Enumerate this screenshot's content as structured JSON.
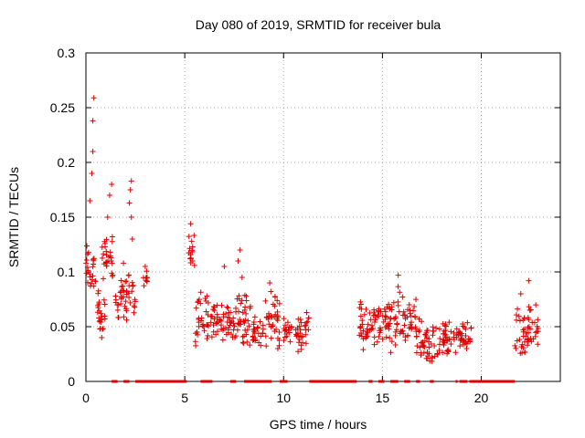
{
  "chart_data": {
    "type": "scatter",
    "title": "Day 080 of 2019, SRMTID for receiver bula",
    "xlabel": "GPS time / hours",
    "ylabel": "SRMTID / TECUs",
    "xlim": [
      0,
      24
    ],
    "ylim": [
      0,
      0.3
    ],
    "xticks": [
      0,
      5,
      10,
      15,
      20
    ],
    "yticks": [
      0,
      0.05,
      0.1,
      0.15,
      0.2,
      0.25,
      0.3
    ],
    "xtick_labels": [
      "0",
      "5",
      "10",
      "15",
      "20"
    ],
    "ytick_labels": [
      "0",
      "0.05",
      "0.1",
      "0.15",
      "0.2",
      "0.25",
      "0.3"
    ],
    "grid": true,
    "marker": "+",
    "color": "#e00000",
    "series": [
      {
        "name": "SRMTID",
        "clusters": [
          {
            "x": [
              0.0,
              0.5
            ],
            "y": [
              0.07,
              0.13
            ],
            "peaks": [
              [
                0.2,
                0.165
              ],
              [
                0.3,
                0.19
              ],
              [
                0.35,
                0.21
              ],
              [
                0.35,
                0.238
              ],
              [
                0.4,
                0.259
              ]
            ]
          },
          {
            "x": [
              0.5,
              1.0
            ],
            "y": [
              0.035,
              0.085
            ],
            "peaks": [
              [
                0.8,
                0.04
              ]
            ]
          },
          {
            "x": [
              0.8,
              1.4
            ],
            "y": [
              0.09,
              0.14
            ],
            "peaks": [
              [
                1.2,
                0.17
              ],
              [
                1.3,
                0.18
              ],
              [
                1.1,
                0.15
              ]
            ]
          },
          {
            "x": [
              1.5,
              2.0
            ],
            "y": [
              0.05,
              0.095
            ],
            "peaks": [
              [
                1.9,
                0.108
              ]
            ]
          },
          {
            "x": [
              2.0,
              2.5
            ],
            "y": [
              0.05,
              0.1
            ],
            "peaks": [
              [
                2.3,
                0.183
              ],
              [
                2.25,
                0.175
              ],
              [
                2.2,
                0.163
              ],
              [
                2.3,
                0.15
              ],
              [
                2.35,
                0.13
              ]
            ]
          },
          {
            "x": [
              2.9,
              3.1
            ],
            "y": [
              0.08,
              0.105
            ],
            "peaks": [
              [
                3.0,
                0.105
              ]
            ]
          },
          {
            "x": [
              5.2,
              5.5
            ],
            "y": [
              0.09,
              0.14
            ],
            "peaks": [
              [
                5.3,
                0.144
              ],
              [
                5.35,
                0.128
              ],
              [
                5.4,
                0.11
              ]
            ]
          },
          {
            "x": [
              5.5,
              6.2
            ],
            "y": [
              0.03,
              0.085
            ],
            "peaks": []
          },
          {
            "x": [
              6.3,
              7.5
            ],
            "y": [
              0.035,
              0.075
            ],
            "peaks": [
              [
                7.0,
                0.105
              ]
            ]
          },
          {
            "x": [
              7.5,
              8.4
            ],
            "y": [
              0.03,
              0.085
            ],
            "peaks": [
              [
                7.8,
                0.12
              ],
              [
                7.7,
                0.11
              ],
              [
                7.9,
                0.095
              ]
            ]
          },
          {
            "x": [
              8.4,
              9.0
            ],
            "y": [
              0.03,
              0.06
            ],
            "peaks": []
          },
          {
            "x": [
              9.0,
              9.8
            ],
            "y": [
              0.025,
              0.085
            ],
            "peaks": [
              [
                9.3,
                0.09
              ]
            ]
          },
          {
            "x": [
              10.0,
              10.4
            ],
            "y": [
              0.03,
              0.06
            ],
            "peaks": []
          },
          {
            "x": [
              10.6,
              11.3
            ],
            "y": [
              0.02,
              0.075
            ],
            "peaks": []
          },
          {
            "x": [
              13.8,
              14.5
            ],
            "y": [
              0.025,
              0.075
            ],
            "peaks": []
          },
          {
            "x": [
              14.5,
              15.3
            ],
            "y": [
              0.03,
              0.08
            ],
            "peaks": []
          },
          {
            "x": [
              15.3,
              16.1
            ],
            "y": [
              0.025,
              0.09
            ],
            "peaks": [
              [
                15.8,
                0.097
              ]
            ]
          },
          {
            "x": [
              16.1,
              16.7
            ],
            "y": [
              0.03,
              0.08
            ],
            "peaks": []
          },
          {
            "x": [
              16.7,
              17.5
            ],
            "y": [
              0.015,
              0.06
            ],
            "peaks": []
          },
          {
            "x": [
              17.5,
              18.5
            ],
            "y": [
              0.015,
              0.06
            ],
            "peaks": []
          },
          {
            "x": [
              18.6,
              19.5
            ],
            "y": [
              0.02,
              0.06
            ],
            "peaks": []
          },
          {
            "x": [
              21.7,
              22.2
            ],
            "y": [
              0.02,
              0.075
            ],
            "peaks": [
              [
                22.0,
                0.08
              ]
            ]
          },
          {
            "x": [
              22.2,
              22.9
            ],
            "y": [
              0.02,
              0.075
            ],
            "peaks": [
              [
                22.4,
                0.092
              ]
            ]
          }
        ],
        "zero_bands": [
          [
            1.3,
            1.6
          ],
          [
            1.9,
            2.2
          ],
          [
            2.5,
            5.1
          ],
          [
            5.8,
            6.4
          ],
          [
            7.3,
            7.6
          ],
          [
            8.0,
            9.4
          ],
          [
            9.8,
            10.2
          ],
          [
            11.3,
            13.7
          ],
          [
            14.3,
            14.5
          ],
          [
            14.8,
            15.1
          ],
          [
            15.4,
            15.8
          ],
          [
            16.1,
            16.4
          ],
          [
            16.7,
            16.9
          ],
          [
            17.4,
            17.6
          ],
          [
            18.7,
            18.8
          ],
          [
            18.9,
            19.3
          ],
          [
            19.4,
            21.7
          ]
        ]
      }
    ]
  }
}
